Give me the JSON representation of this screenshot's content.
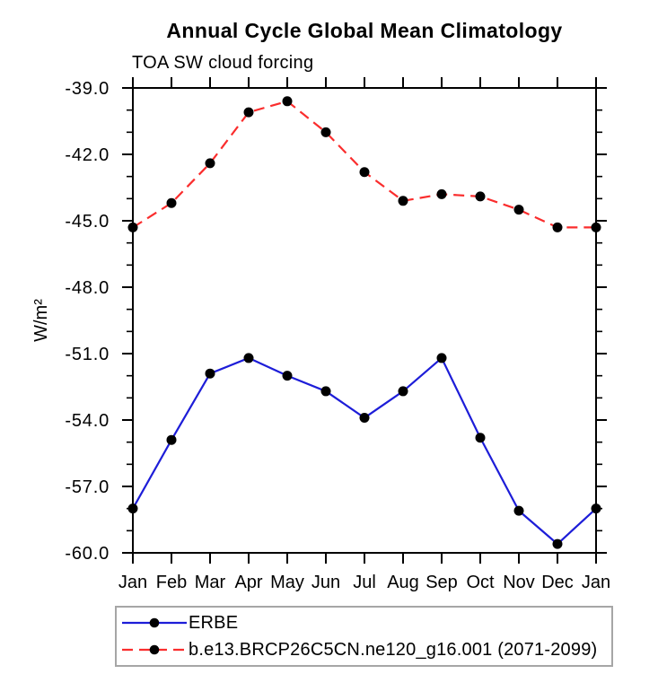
{
  "header": {
    "title": "Annual Cycle Global Mean Climatology",
    "subtitle": "TOA SW cloud forcing"
  },
  "chart_data": {
    "type": "line",
    "title": "Annual Cycle Global Mean Climatology",
    "subtitle": "TOA SW cloud forcing",
    "ylabel": "W/m²",
    "xlabel": "",
    "x_categories": [
      "Jan",
      "Feb",
      "Mar",
      "Apr",
      "May",
      "Jun",
      "Jul",
      "Aug",
      "Sep",
      "Oct",
      "Nov",
      "Dec",
      "Jan"
    ],
    "ylim": [
      -60.0,
      -39.0
    ],
    "ytick_major_values": [
      -39.0,
      -42.0,
      -45.0,
      -48.0,
      -51.0,
      -54.0,
      -57.0,
      -60.0
    ],
    "ytick_labels": [
      "-39.0",
      "-42.0",
      "-45.0",
      "-48.0",
      "-51.0",
      "-54.0",
      "-57.0",
      "-60.0"
    ],
    "ytick_minor_step": 1.0,
    "grid": false,
    "legend_position": "bottom-left",
    "frame_color": "#000000",
    "marker_color": "#000000",
    "series": [
      {
        "name": "ERBE",
        "color": "#1d1dd8",
        "line_style": "solid",
        "marker": "circle",
        "values": [
          -58.0,
          -54.9,
          -51.9,
          -51.2,
          -52.0,
          -52.7,
          -53.9,
          -52.7,
          -51.2,
          -54.8,
          -58.1,
          -59.6,
          -58.0
        ]
      },
      {
        "name": "b.e13.BRCP26C5CN.ne120_g16.001 (2071-2099)",
        "color": "#fa2d2d",
        "line_style": "dashed",
        "marker": "circle",
        "values": [
          -45.3,
          -44.2,
          -42.4,
          -40.1,
          -39.6,
          -41.0,
          -42.8,
          -44.1,
          -43.8,
          -43.9,
          -44.5,
          -45.3,
          -45.3
        ]
      }
    ]
  }
}
